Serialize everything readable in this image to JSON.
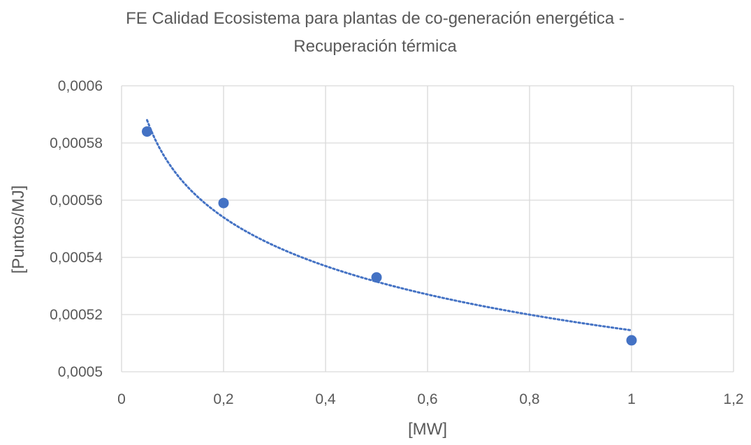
{
  "chart_data": {
    "type": "scatter",
    "title_lines": [
      "FE Calidad Ecosistema para plantas de co-generación energética -",
      "Recuperación térmica"
    ],
    "xlabel": "[MW]",
    "ylabel": "[Puntos/MJ]",
    "xlim": [
      0,
      1.2
    ],
    "ylim": [
      0.0005,
      0.0006
    ],
    "x_ticks": [
      0,
      0.2,
      0.4,
      0.6,
      0.8,
      1,
      1.2
    ],
    "x_tick_labels": [
      "0",
      "0,2",
      "0,4",
      "0,6",
      "0,8",
      "1",
      "1,2"
    ],
    "y_ticks": [
      0.0005,
      0.00052,
      0.00054,
      0.00056,
      0.00058,
      0.0006
    ],
    "y_tick_labels": [
      "0,0005",
      "0,00052",
      "0,00054",
      "0,00056",
      "0,00058",
      "0,0006"
    ],
    "grid": true,
    "legend": "none",
    "series": [
      {
        "x": [
          0.05,
          0.2,
          0.5,
          1.0
        ],
        "y": [
          0.000584,
          0.000559,
          0.000533,
          0.000511
        ],
        "color": "#4472C4",
        "marker": "circle"
      }
    ],
    "trendline": {
      "type": "logarithmic",
      "style": "dotted",
      "color": "#4472C4",
      "x_range": [
        0.05,
        1.0
      ],
      "y_at_x_start": 0.000588,
      "y_at_x_end": 0.0005145
    }
  }
}
